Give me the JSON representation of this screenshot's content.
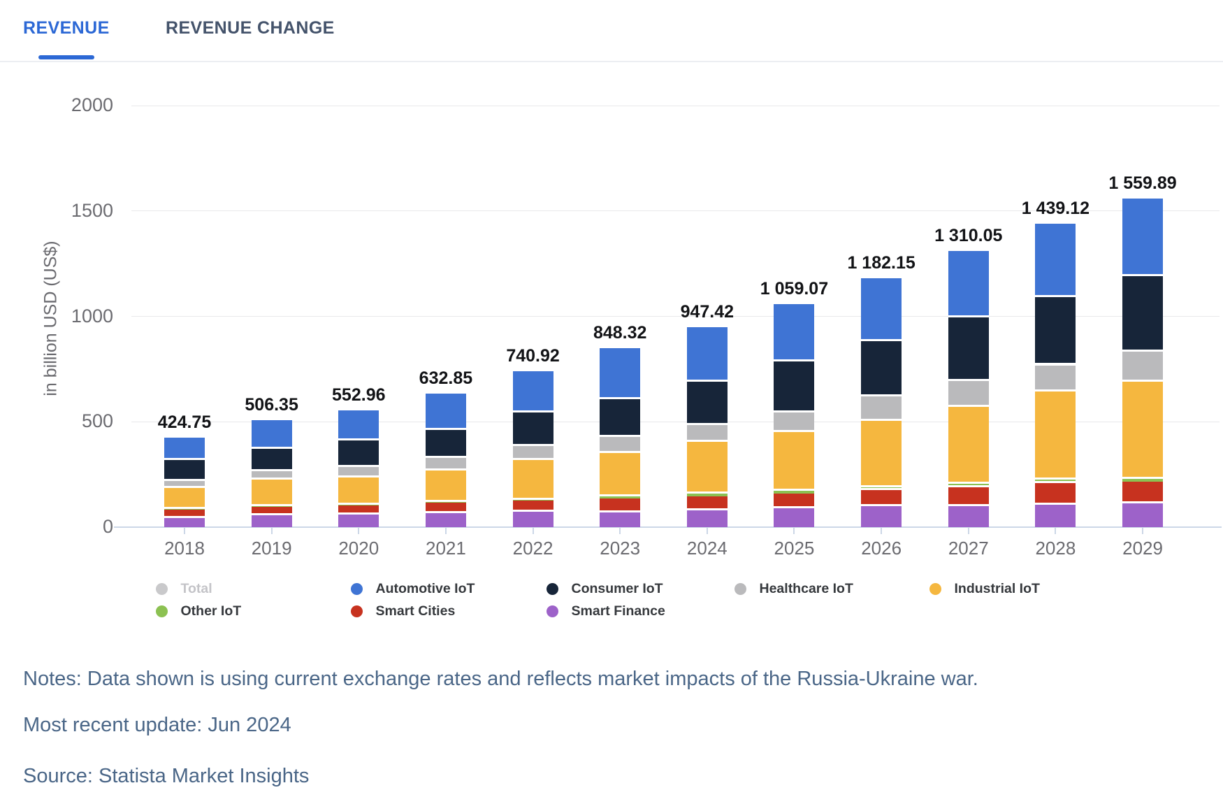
{
  "tabs": {
    "revenue_label": "REVENUE",
    "revenue_change_label": "REVENUE CHANGE"
  },
  "chart_data": {
    "type": "bar",
    "stacked": true,
    "ylabel": "in billion USD (US$)",
    "ylim": [
      0,
      2000
    ],
    "yticks": [
      0,
      500,
      1000,
      1500,
      2000
    ],
    "grid": "horizontal",
    "legend_position": "bottom",
    "categories": [
      "2018",
      "2019",
      "2020",
      "2021",
      "2022",
      "2023",
      "2024",
      "2025",
      "2026",
      "2027",
      "2028",
      "2029"
    ],
    "totals": [
      424.75,
      506.35,
      552.96,
      632.85,
      740.92,
      848.32,
      947.42,
      1059.07,
      1182.15,
      1310.05,
      1439.12,
      1559.89
    ],
    "totals_display": [
      "424.75",
      "506.35",
      "552.96",
      "632.85",
      "740.92",
      "848.32",
      "947.42",
      "1 059.07",
      "1 182.15",
      "1 310.05",
      "1 439.12",
      "1 559.89"
    ],
    "series": [
      {
        "name": "Smart Finance",
        "color": "#9d62c9",
        "values": [
          44.0,
          55.7,
          60.5,
          65.3,
          72.0,
          71.0,
          80.0,
          90.0,
          98.5,
          99.05,
          105.5,
          111.39
        ]
      },
      {
        "name": "Smart Cities",
        "color": "#c7321f",
        "values": [
          41.5,
          42.8,
          43.1,
          52.4,
          56.0,
          64.0,
          66.0,
          70.0,
          77.0,
          91.5,
          104.5,
          105.5
        ]
      },
      {
        "name": "Other IoT",
        "color": "#8cc152",
        "values": [
          1.2,
          1.5,
          1.8,
          2.0,
          3.0,
          11.0,
          13.0,
          13.0,
          14.0,
          15.0,
          14.0,
          13.0
        ]
      },
      {
        "name": "Industrial IoT",
        "color": "#f5b73f",
        "values": [
          98.5,
          127.2,
          129.5,
          149.5,
          189.0,
          207.0,
          247.0,
          277.0,
          316.0,
          366.0,
          418.62,
          461.0
        ]
      },
      {
        "name": "Healthcare IoT",
        "color": "#bababc",
        "values": [
          32.3,
          37.5,
          50.0,
          60.0,
          66.3,
          73.6,
          77.5,
          94.5,
          114.0,
          120.5,
          125.5,
          141.0
        ]
      },
      {
        "name": "Consumer IoT",
        "color": "#172539",
        "values": [
          100.5,
          106.1,
          125.0,
          133.0,
          157.0,
          181.5,
          207.0,
          240.5,
          262.0,
          302.0,
          322.5,
          358.0
        ]
      },
      {
        "name": "Automotive IoT",
        "color": "#3f74d4",
        "values": [
          106.75,
          135.55,
          143.06,
          170.65,
          197.62,
          240.22,
          256.92,
          274.07,
          300.65,
          316.0,
          348.5,
          370.0
        ]
      }
    ]
  },
  "legend": {
    "rows": [
      [
        {
          "label": "Total",
          "color": "#c9c9cb",
          "muted": true
        },
        {
          "label": "Automotive IoT",
          "color": "#3f74d4"
        },
        {
          "label": "Consumer IoT",
          "color": "#172539"
        },
        {
          "label": "Healthcare IoT",
          "color": "#bababc"
        },
        {
          "label": "Industrial IoT",
          "color": "#f5b73f"
        }
      ],
      [
        {
          "label": "Other IoT",
          "color": "#8cc152"
        },
        {
          "label": "Smart Cities",
          "color": "#c7321f"
        },
        {
          "label": "Smart Finance",
          "color": "#9d62c9"
        }
      ]
    ]
  },
  "notes": {
    "line1": "Notes: Data shown is using current exchange rates and reflects market impacts of the Russia-Ukraine war.",
    "line2": "Most recent update: Jun 2024",
    "line3": "Source: Statista Market Insights"
  }
}
